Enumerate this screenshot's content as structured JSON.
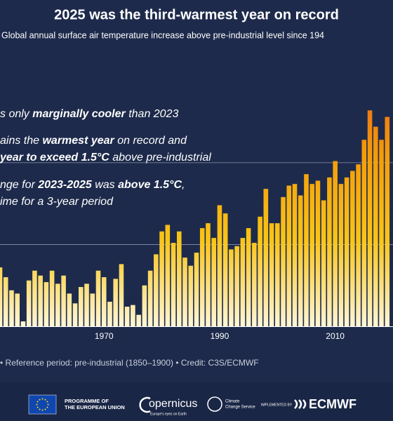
{
  "chart_data": {
    "type": "bar",
    "title": "2025 was the third-warmest year on record",
    "subtitle": "Global annual surface air temperature increase above pre-industrial level since 194",
    "annotations": [
      {
        "parts": [
          {
            "text": "s only "
          },
          {
            "text": "marginally cooler",
            "bold": true
          },
          {
            "text": " than 2023"
          }
        ]
      },
      {
        "parts": [
          {
            "text": "ains the "
          },
          {
            "text": "warmest year",
            "bold": true
          },
          {
            "text": " on record and"
          }
        ]
      },
      {
        "parts": [
          {
            "text": "year to exceed 1.5°C",
            "bold": true
          },
          {
            "text": " above pre-industrial"
          }
        ]
      },
      {
        "parts": [
          {
            "text": "nge for "
          },
          {
            "text": "2023-2025",
            "bold": true
          },
          {
            "text": " was "
          },
          {
            "text": "above 1.5°C",
            "bold": true
          },
          {
            "text": ","
          }
        ]
      },
      {
        "parts": [
          {
            "text": "ime for a 3-year period"
          }
        ]
      }
    ],
    "x": [
      1952,
      1953,
      1954,
      1955,
      1956,
      1957,
      1958,
      1959,
      1960,
      1961,
      1962,
      1963,
      1964,
      1965,
      1966,
      1967,
      1968,
      1969,
      1970,
      1971,
      1972,
      1973,
      1974,
      1975,
      1976,
      1977,
      1978,
      1979,
      1980,
      1981,
      1982,
      1983,
      1984,
      1985,
      1986,
      1987,
      1988,
      1989,
      1990,
      1991,
      1992,
      1993,
      1994,
      1995,
      1996,
      1997,
      1998,
      1999,
      2000,
      2001,
      2002,
      2003,
      2004,
      2005,
      2006,
      2007,
      2008,
      2009,
      2010,
      2011,
      2012,
      2013,
      2014,
      2015,
      2016,
      2017,
      2018,
      2019
    ],
    "values": [
      0.36,
      0.3,
      0.22,
      0.2,
      0.03,
      0.28,
      0.34,
      0.31,
      0.27,
      0.34,
      0.26,
      0.31,
      0.2,
      0.14,
      0.24,
      0.26,
      0.2,
      0.34,
      0.3,
      0.15,
      0.29,
      0.38,
      0.12,
      0.13,
      0.07,
      0.25,
      0.34,
      0.44,
      0.58,
      0.62,
      0.51,
      0.58,
      0.42,
      0.37,
      0.45,
      0.6,
      0.63,
      0.54,
      0.74,
      0.69,
      0.47,
      0.49,
      0.54,
      0.6,
      0.51,
      0.67,
      0.84,
      0.63,
      0.63,
      0.79,
      0.86,
      0.87,
      0.8,
      0.93,
      0.87,
      0.89,
      0.77,
      0.91,
      1.01,
      0.87,
      0.91,
      0.95,
      0.99,
      1.14,
      1.32,
      1.22,
      1.14,
      1.28
    ],
    "colormap": [
      "#fff6d6",
      "#f9c417",
      "#f39a0a",
      "#e75a1c"
    ],
    "xlim": [
      1952,
      2020
    ],
    "xticks": [
      1970,
      1990,
      2010
    ],
    "ylim": [
      0,
      1.6
    ],
    "grid_lines": [
      0.5,
      1
    ],
    "footer": "• Reference period: pre-industrial (1850–1900) • Credit: C3S/ECMWF"
  },
  "branding": {
    "eu": [
      "PROGRAMME OF",
      "THE EUROPEAN UNION"
    ],
    "copernicus": "opernicus",
    "copernicus_tagline": "Europe's eyes on Earth",
    "c3s": [
      "Climate",
      "Change Service"
    ],
    "implemented": "IMPLEMENTED BY",
    "ecmwf": "ECMWF"
  }
}
